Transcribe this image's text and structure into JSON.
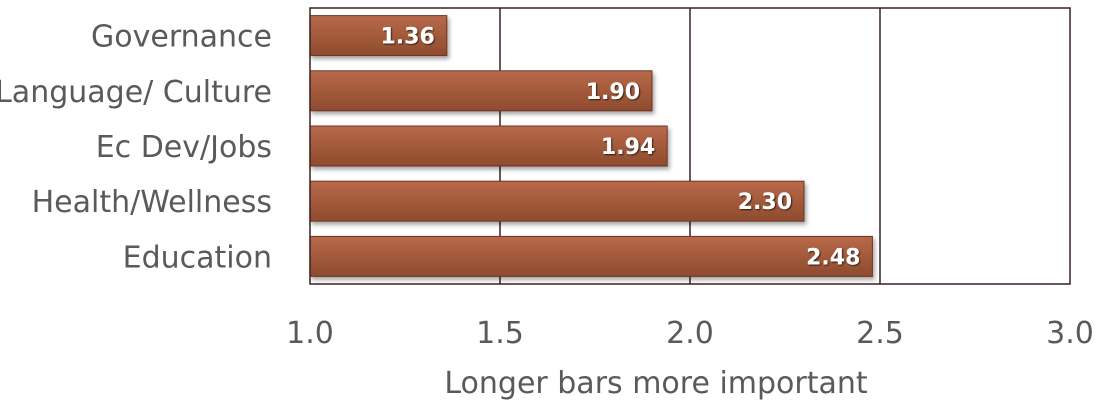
{
  "chart_data": {
    "type": "bar",
    "orientation": "horizontal",
    "categories": [
      "Governance",
      "Language/ Culture",
      "Ec Dev/Jobs",
      "Health/Wellness",
      "Education"
    ],
    "values": [
      1.36,
      1.9,
      1.94,
      2.3,
      2.48
    ],
    "value_labels": [
      "1.36",
      "1.90",
      "1.94",
      "2.30",
      "2.48"
    ],
    "xlim": [
      1.0,
      3.0
    ],
    "xticks": [
      1.0,
      1.5,
      2.0,
      2.5,
      3.0
    ],
    "xtick_labels": [
      "1.0",
      "1.5",
      "2.0",
      "2.5",
      "3.0"
    ],
    "xlabel": "Longer bars more important",
    "ylabel": "",
    "title": "",
    "grid": "vertical",
    "bar_color": "#A35A3B",
    "bar_edge_color": "#6E3520",
    "label_color": "#ffffff",
    "text_color": "#5a5a5a",
    "frame_color": "#3a2020"
  }
}
